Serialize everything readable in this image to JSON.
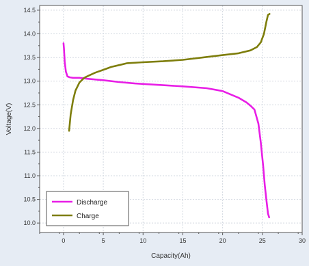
{
  "chart_data": {
    "type": "line",
    "title": "",
    "xlabel": "Capacity(Ah)",
    "ylabel": "Voltage(V)",
    "xlim": [
      -3,
      30
    ],
    "ylim": [
      9.8,
      14.6
    ],
    "xticks": [
      "0",
      "5",
      "10",
      "15",
      "20",
      "25",
      "30"
    ],
    "yticks": [
      "10.0",
      "10.5",
      "11.0",
      "11.5",
      "12.0",
      "12.5",
      "13.0",
      "13.5",
      "14.0",
      "14.5"
    ],
    "grid": true,
    "legend_position": "bottom-left",
    "colors": {
      "background": "#e6ecf4",
      "plot_background": "#ffffff",
      "grid": "#d2d8e0",
      "axis": "#555555"
    },
    "series": [
      {
        "name": "Discharge",
        "color": "#e81ee6",
        "x": [
          0.0,
          0.05,
          0.15,
          0.3,
          0.5,
          0.8,
          1.2,
          2.0,
          3.0,
          5.0,
          7.0,
          9.0,
          12.0,
          15.0,
          18.0,
          20.0,
          22.0,
          23.0,
          23.5,
          24.0,
          24.5,
          24.8,
          25.1,
          25.3,
          25.5,
          25.7,
          25.85
        ],
        "y": [
          13.8,
          13.7,
          13.4,
          13.2,
          13.1,
          13.08,
          13.07,
          13.07,
          13.05,
          13.02,
          12.98,
          12.95,
          12.92,
          12.89,
          12.85,
          12.79,
          12.65,
          12.55,
          12.48,
          12.4,
          12.1,
          11.7,
          11.2,
          10.8,
          10.5,
          10.2,
          10.12
        ]
      },
      {
        "name": "Charge",
        "color": "#7e7e0c",
        "x": [
          0.7,
          0.9,
          1.2,
          1.5,
          2.0,
          2.6,
          3.2,
          4.0,
          5.0,
          6.0,
          7.0,
          8.0,
          10.0,
          12.5,
          15.0,
          17.5,
          20.0,
          22.0,
          23.5,
          24.3,
          24.8,
          25.2,
          25.5,
          25.7,
          25.9
        ],
        "y": [
          11.95,
          12.3,
          12.6,
          12.8,
          12.97,
          13.07,
          13.12,
          13.18,
          13.24,
          13.3,
          13.34,
          13.38,
          13.4,
          13.42,
          13.45,
          13.5,
          13.55,
          13.59,
          13.65,
          13.72,
          13.82,
          14.0,
          14.25,
          14.4,
          14.42
        ]
      }
    ]
  }
}
